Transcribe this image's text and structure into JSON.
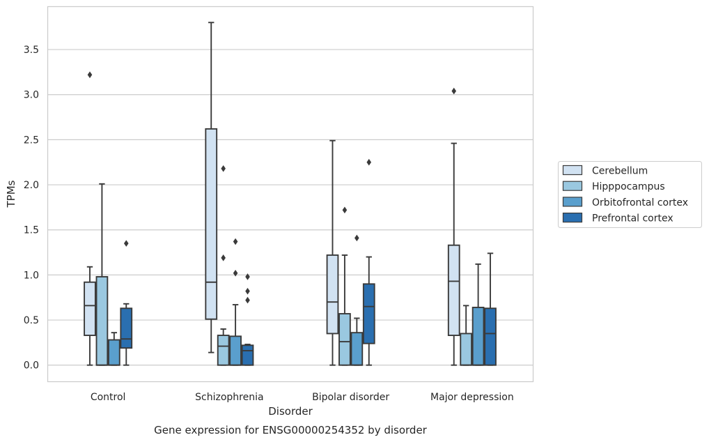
{
  "chart_data": {
    "type": "box",
    "title": "Gene expression for ENSG00000254352 by disorder",
    "xlabel": "Disorder",
    "ylabel": "TPMs",
    "ylim": [
      -0.18,
      3.98
    ],
    "yticks": [
      0.0,
      0.5,
      1.0,
      1.5,
      2.0,
      2.5,
      3.0,
      3.5
    ],
    "ytick_labels": [
      "0.0",
      "0.5",
      "1.0",
      "1.5",
      "2.0",
      "2.5",
      "3.0",
      "3.5"
    ],
    "grid": "horizontal",
    "legend_position": "right",
    "categories": [
      "Control",
      "Schizophrenia",
      "Bipolar disorder",
      "Major depression"
    ],
    "series": [
      {
        "name": "Cerebellum",
        "color": "#d1e2f2",
        "boxes": [
          {
            "whisker_low": 0.0,
            "q1": 0.33,
            "median": 0.66,
            "q3": 0.92,
            "whisker_high": 1.09,
            "outliers": [
              3.22
            ]
          },
          {
            "whisker_low": 0.14,
            "q1": 0.51,
            "median": 0.92,
            "q3": 2.62,
            "whisker_high": 3.8,
            "outliers": []
          },
          {
            "whisker_low": 0.0,
            "q1": 0.35,
            "median": 0.7,
            "q3": 1.22,
            "whisker_high": 2.49,
            "outliers": []
          },
          {
            "whisker_low": 0.0,
            "q1": 0.33,
            "median": 0.93,
            "q3": 1.33,
            "whisker_high": 2.46,
            "outliers": [
              3.04
            ]
          }
        ]
      },
      {
        "name": "Hipppocampus",
        "color": "#9ac8e0",
        "boxes": [
          {
            "whisker_low": 0.0,
            "q1": 0.0,
            "median": 0.0,
            "q3": 0.98,
            "whisker_high": 2.01,
            "outliers": []
          },
          {
            "whisker_low": 0.0,
            "q1": 0.0,
            "median": 0.21,
            "q3": 0.33,
            "whisker_high": 0.4,
            "outliers": [
              1.19,
              2.18
            ]
          },
          {
            "whisker_low": 0.0,
            "q1": 0.0,
            "median": 0.26,
            "q3": 0.57,
            "whisker_high": 1.22,
            "outliers": [
              1.72
            ]
          },
          {
            "whisker_low": 0.0,
            "q1": 0.0,
            "median": 0.0,
            "q3": 0.35,
            "whisker_high": 0.66,
            "outliers": []
          }
        ]
      },
      {
        "name": "Orbitofrontal cortex",
        "color": "#5a9fcd",
        "boxes": [
          {
            "whisker_low": 0.0,
            "q1": 0.0,
            "median": 0.0,
            "q3": 0.28,
            "whisker_high": 0.36,
            "outliers": []
          },
          {
            "whisker_low": 0.0,
            "q1": 0.0,
            "median": 0.0,
            "q3": 0.32,
            "whisker_high": 0.67,
            "outliers": [
              1.02,
              1.37
            ]
          },
          {
            "whisker_low": 0.0,
            "q1": 0.0,
            "median": 0.0,
            "q3": 0.36,
            "whisker_high": 0.52,
            "outliers": [
              1.41
            ]
          },
          {
            "whisker_low": 0.0,
            "q1": 0.0,
            "median": 0.0,
            "q3": 0.64,
            "whisker_high": 1.12,
            "outliers": []
          }
        ]
      },
      {
        "name": "Prefrontal cortex",
        "color": "#2a6fb0",
        "boxes": [
          {
            "whisker_low": 0.0,
            "q1": 0.19,
            "median": 0.29,
            "q3": 0.63,
            "whisker_high": 0.68,
            "outliers": [
              1.35
            ]
          },
          {
            "whisker_low": 0.0,
            "q1": 0.0,
            "median": 0.16,
            "q3": 0.22,
            "whisker_high": 0.23,
            "outliers": [
              0.72,
              0.82,
              0.98
            ]
          },
          {
            "whisker_low": 0.0,
            "q1": 0.24,
            "median": 0.65,
            "q3": 0.9,
            "whisker_high": 1.2,
            "outliers": [
              2.25
            ]
          },
          {
            "whisker_low": 0.0,
            "q1": 0.0,
            "median": 0.35,
            "q3": 0.63,
            "whisker_high": 1.24,
            "outliers": []
          }
        ]
      }
    ]
  }
}
